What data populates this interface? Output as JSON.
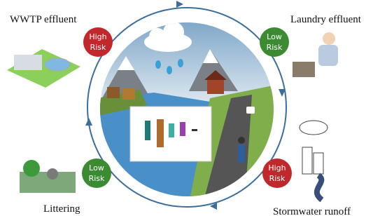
{
  "nodes": [
    {
      "label": "WWTP effluent",
      "risk": {
        "level": "High",
        "word": "Risk"
      }
    },
    {
      "label": "Laundry effluent",
      "risk": {
        "level": "Low",
        "word": "Risk"
      }
    },
    {
      "label": "Stormwater runoff",
      "risk": {
        "level": "High",
        "word": "Risk"
      }
    },
    {
      "label": "Littering",
      "risk": {
        "level": "Low",
        "word": "Risk"
      }
    }
  ]
}
